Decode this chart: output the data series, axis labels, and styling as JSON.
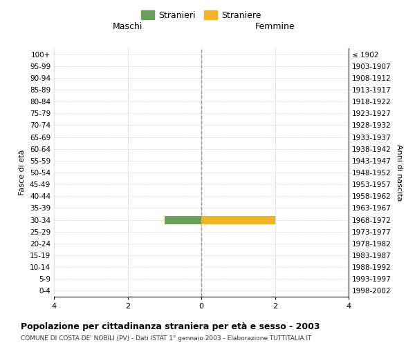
{
  "age_groups": [
    "100+",
    "95-99",
    "90-94",
    "85-89",
    "80-84",
    "75-79",
    "70-74",
    "65-69",
    "60-64",
    "55-59",
    "50-54",
    "45-49",
    "40-44",
    "35-39",
    "30-34",
    "25-29",
    "20-24",
    "15-19",
    "10-14",
    "5-9",
    "0-4"
  ],
  "birth_years": [
    "≤ 1902",
    "1903-1907",
    "1908-1912",
    "1913-1917",
    "1918-1922",
    "1923-1927",
    "1928-1932",
    "1933-1937",
    "1938-1942",
    "1943-1947",
    "1948-1952",
    "1953-1957",
    "1958-1962",
    "1963-1967",
    "1968-1972",
    "1973-1977",
    "1978-1982",
    "1983-1987",
    "1988-1992",
    "1993-1997",
    "1998-2002"
  ],
  "males": [
    0,
    0,
    0,
    0,
    0,
    0,
    0,
    0,
    0,
    0,
    0,
    0,
    0,
    0,
    1,
    0,
    0,
    0,
    0,
    0,
    0
  ],
  "females": [
    0,
    0,
    0,
    0,
    0,
    0,
    0,
    0,
    0,
    0,
    0,
    0,
    0,
    0,
    2,
    0,
    0,
    0,
    0,
    0,
    0
  ],
  "male_color": "#6a9f5e",
  "female_color": "#f0b429",
  "xlim": 4,
  "title": "Popolazione per cittadinanza straniera per età e sesso - 2003",
  "subtitle": "COMUNE DI COSTA DE' NOBILI (PV) - Dati ISTAT 1° gennaio 2003 - Elaborazione TUTTITALIA.IT",
  "left_header": "Maschi",
  "right_header": "Femmine",
  "ylabel_left": "Fasce di età",
  "ylabel_right": "Anni di nascita",
  "legend_male": "Stranieri",
  "legend_female": "Straniere",
  "background_color": "#ffffff",
  "grid_color": "#cccccc",
  "bar_height": 0.7,
  "xtick_labels": [
    "4",
    "2",
    "0",
    "2",
    "4"
  ],
  "xtick_values": [
    -4,
    -2,
    0,
    2,
    4
  ]
}
